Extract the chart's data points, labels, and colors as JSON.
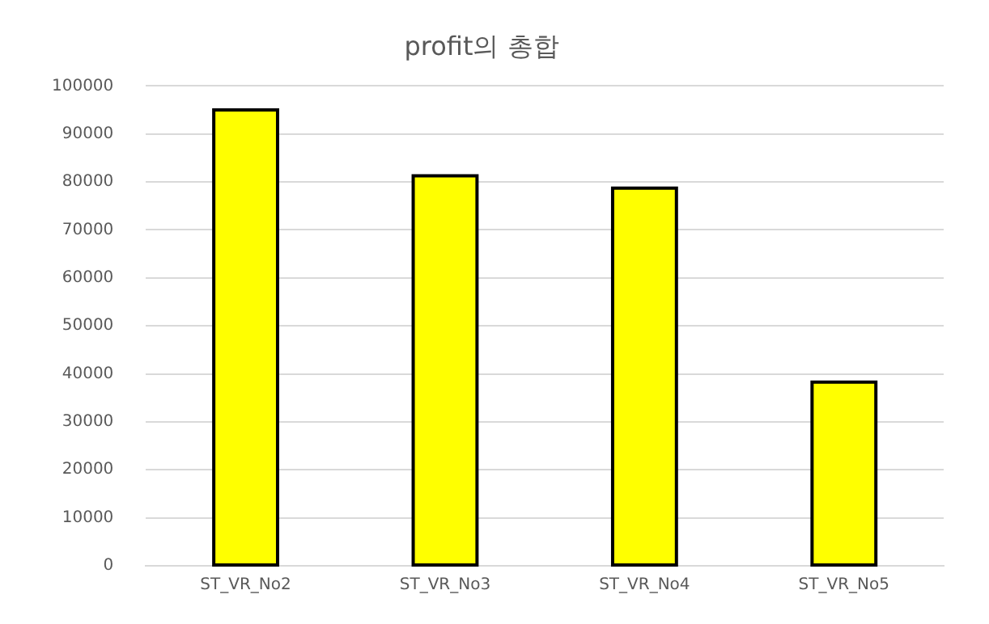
{
  "chart_data": {
    "type": "bar",
    "title": "profit의 총합",
    "categories": [
      "ST_VR_No2",
      "ST_VR_No3",
      "ST_VR_No4",
      "ST_VR_No5"
    ],
    "values": [
      95000,
      81300,
      78700,
      38300
    ],
    "color": "#ffff00",
    "ylim": [
      0,
      100000
    ],
    "yticks": [
      0,
      10000,
      20000,
      30000,
      40000,
      50000,
      60000,
      70000,
      80000,
      90000,
      100000
    ],
    "grid": "y",
    "legend": false
  }
}
